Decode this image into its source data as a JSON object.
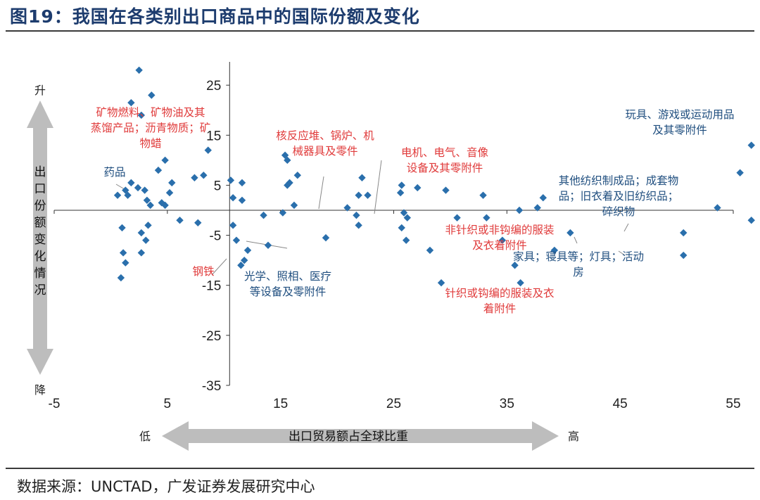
{
  "title": "图19：我国在各类别出口商品中的国际份额及变化",
  "source": "数据来源：UNCTAD，广发证券发展研究中心",
  "colors": {
    "point": "#2a6fac",
    "red_label": "#e03b3b",
    "blue_label": "#1f4e7f",
    "arrow": "#bdbdbd"
  },
  "chart_data": {
    "type": "scatter",
    "xlim": [
      -5,
      55
    ],
    "ylim": [
      -35,
      30
    ],
    "x_ticks": [
      -5,
      5,
      15,
      25,
      35,
      45,
      55
    ],
    "y_ticks": [
      25,
      15,
      5,
      -5,
      -15,
      -25,
      -35
    ],
    "xlabel": "出口贸易额占全球比重",
    "xlabel_low": "低",
    "xlabel_high": "高",
    "ylabel": "出口份额变化情况",
    "ylabel_up": "升",
    "ylabel_down": "降",
    "grid": false,
    "points": [
      [
        2.5,
        28
      ],
      [
        1.8,
        21.5
      ],
      [
        3.6,
        23
      ],
      [
        2.7,
        19
      ],
      [
        0.6,
        3
      ],
      [
        1.3,
        4
      ],
      [
        1.5,
        3
      ],
      [
        1.8,
        5.5
      ],
      [
        2.4,
        4.5
      ],
      [
        3.0,
        4
      ],
      [
        3.2,
        2
      ],
      [
        3.5,
        1
      ],
      [
        4.2,
        8
      ],
      [
        4.5,
        1.5
      ],
      [
        4.8,
        1
      ],
      [
        4.8,
        10
      ],
      [
        5.2,
        3.5
      ],
      [
        5.4,
        5.5
      ],
      [
        1.0,
        -3.5
      ],
      [
        1.1,
        -8.5
      ],
      [
        1.3,
        -10.5
      ],
      [
        0.9,
        -13.5
      ],
      [
        2.7,
        -4.5
      ],
      [
        2.7,
        -8.5
      ],
      [
        3.3,
        -3
      ],
      [
        3.1,
        -6
      ],
      [
        6.1,
        -2
      ],
      [
        7.4,
        6.5
      ],
      [
        7.7,
        -2.5
      ],
      [
        8.6,
        12
      ],
      [
        8.2,
        7
      ],
      [
        10.6,
        6
      ],
      [
        10.8,
        2.5
      ],
      [
        10.8,
        -3
      ],
      [
        11.1,
        -6
      ],
      [
        11.6,
        2
      ],
      [
        11.6,
        5.5
      ],
      [
        12.1,
        -8
      ],
      [
        11.8,
        -10
      ],
      [
        11.5,
        -11
      ],
      [
        13.5,
        -1
      ],
      [
        13.9,
        -7
      ],
      [
        15.2,
        -0.5
      ],
      [
        15.4,
        11
      ],
      [
        15.6,
        10
      ],
      [
        15.6,
        5
      ],
      [
        15.8,
        5.5
      ],
      [
        16.5,
        7
      ],
      [
        16.2,
        1
      ],
      [
        19.0,
        -5.5
      ],
      [
        20.9,
        0.5
      ],
      [
        21.7,
        -1
      ],
      [
        21.9,
        -3
      ],
      [
        21.9,
        3
      ],
      [
        22.2,
        6.5
      ],
      [
        22.7,
        3
      ],
      [
        25.6,
        3.5
      ],
      [
        25.7,
        5
      ],
      [
        25.9,
        -0.5
      ],
      [
        25.7,
        -3.5
      ],
      [
        26.2,
        -1.5
      ],
      [
        26.1,
        -6
      ],
      [
        27.1,
        4.5
      ],
      [
        28.2,
        -8
      ],
      [
        29.2,
        -14.5
      ],
      [
        29.6,
        4
      ],
      [
        30.6,
        -1.5
      ],
      [
        32.9,
        3
      ],
      [
        33.2,
        -1.5
      ],
      [
        34.6,
        -6
      ],
      [
        35.7,
        -11
      ],
      [
        36.1,
        0
      ],
      [
        36.2,
        -14.5
      ],
      [
        37.7,
        0.5
      ],
      [
        38.2,
        2.5
      ],
      [
        39.2,
        -8
      ],
      [
        40.6,
        -4.5
      ],
      [
        50.6,
        -4.5
      ],
      [
        50.6,
        -9
      ],
      [
        53.6,
        0.5
      ],
      [
        55.6,
        7.5
      ],
      [
        56.6,
        13
      ],
      [
        56.6,
        -2
      ]
    ],
    "annotations": [
      {
        "lines": [
          "矿物燃料、矿物油及其",
          "蒸馏产品；沥青物质；矿",
          "物蜡"
        ],
        "color": "red"
      },
      {
        "lines": [
          "核反应堆、锅炉、机",
          "械器具及零件"
        ],
        "color": "red"
      },
      {
        "lines": [
          "电机、电气、音像",
          "设备及其零附件"
        ],
        "color": "red"
      },
      {
        "lines": [
          "非针织或非钩编的服装",
          "及衣着附件"
        ],
        "color": "red"
      },
      {
        "lines": [
          "针织或钩编的服装及衣",
          "着附件"
        ],
        "color": "red"
      },
      {
        "lines": [
          "钢铁"
        ],
        "color": "red"
      },
      {
        "lines": [
          "药品"
        ],
        "color": "blue"
      },
      {
        "lines": [
          "光学、照相、医疗",
          "等设备及零附件"
        ],
        "color": "blue"
      },
      {
        "lines": [
          "玩具、游戏或运动用品",
          "及其零附件"
        ],
        "color": "blue"
      },
      {
        "lines": [
          "其他纺织制成品；成套物",
          "品；旧衣着及旧纺织品；",
          "碎织物"
        ],
        "color": "blue"
      },
      {
        "lines": [
          "家具；寝具等；灯具；活动",
          "房"
        ],
        "color": "blue"
      }
    ]
  }
}
